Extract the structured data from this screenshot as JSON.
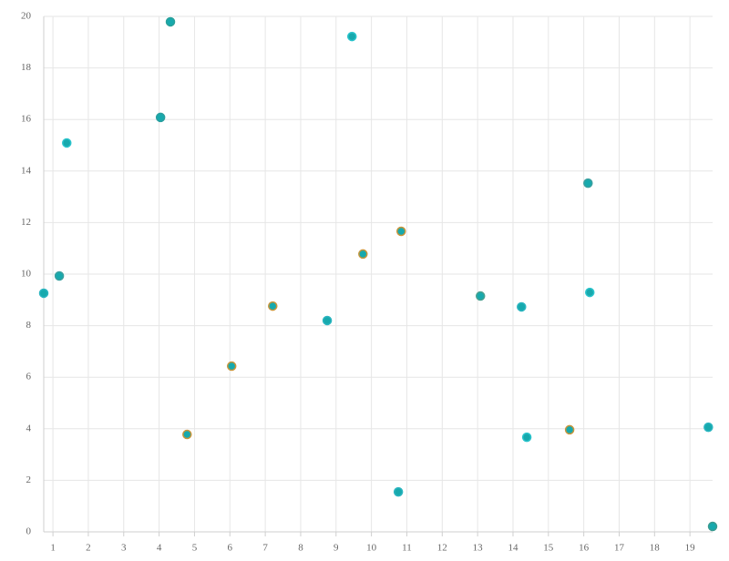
{
  "chart_data": {
    "type": "scatter",
    "x": [
      0.74,
      1.18,
      1.39,
      4.04,
      4.32,
      4.79,
      6.05,
      7.21,
      8.75,
      9.45,
      9.76,
      10.84,
      10.76,
      13.08,
      14.24,
      14.39,
      15.6,
      16.12,
      16.17,
      19.52,
      19.64
    ],
    "values": [
      9.26,
      9.93,
      15.09,
      16.08,
      19.79,
      3.78,
      6.43,
      8.76,
      8.2,
      19.22,
      10.78,
      11.66,
      1.55,
      9.15,
      8.73,
      3.67,
      3.96,
      13.53,
      9.29,
      4.06,
      0.21
    ],
    "color": "#17a9ad",
    "edge_colors": [
      "#2bb5c0",
      "#3aa0a0",
      "#2bc4cc",
      "#2a9e9e",
      "#2aa09a",
      "#c8953a",
      "#c8953a",
      "#c8953a",
      "#2bb5c0",
      "#2bc4cc",
      "#c8953a",
      "#c8953a",
      "#2bb5c0",
      "#4aa090",
      "#2bb5c0",
      "#2bc4cc",
      "#c8953a",
      "#3aa0a0",
      "#2bc4cc",
      "#2bb5c0",
      "#3a9a90"
    ],
    "xlim": [
      0.74,
      19.64
    ],
    "ylim": [
      0,
      20
    ],
    "xticks": [
      1,
      2,
      3,
      4,
      5,
      6,
      7,
      8,
      9,
      10,
      11,
      12,
      13,
      14,
      15,
      16,
      17,
      18,
      19
    ],
    "yticks": [
      0,
      2,
      4,
      6,
      8,
      10,
      12,
      14,
      16,
      18,
      20
    ],
    "grid": true
  }
}
